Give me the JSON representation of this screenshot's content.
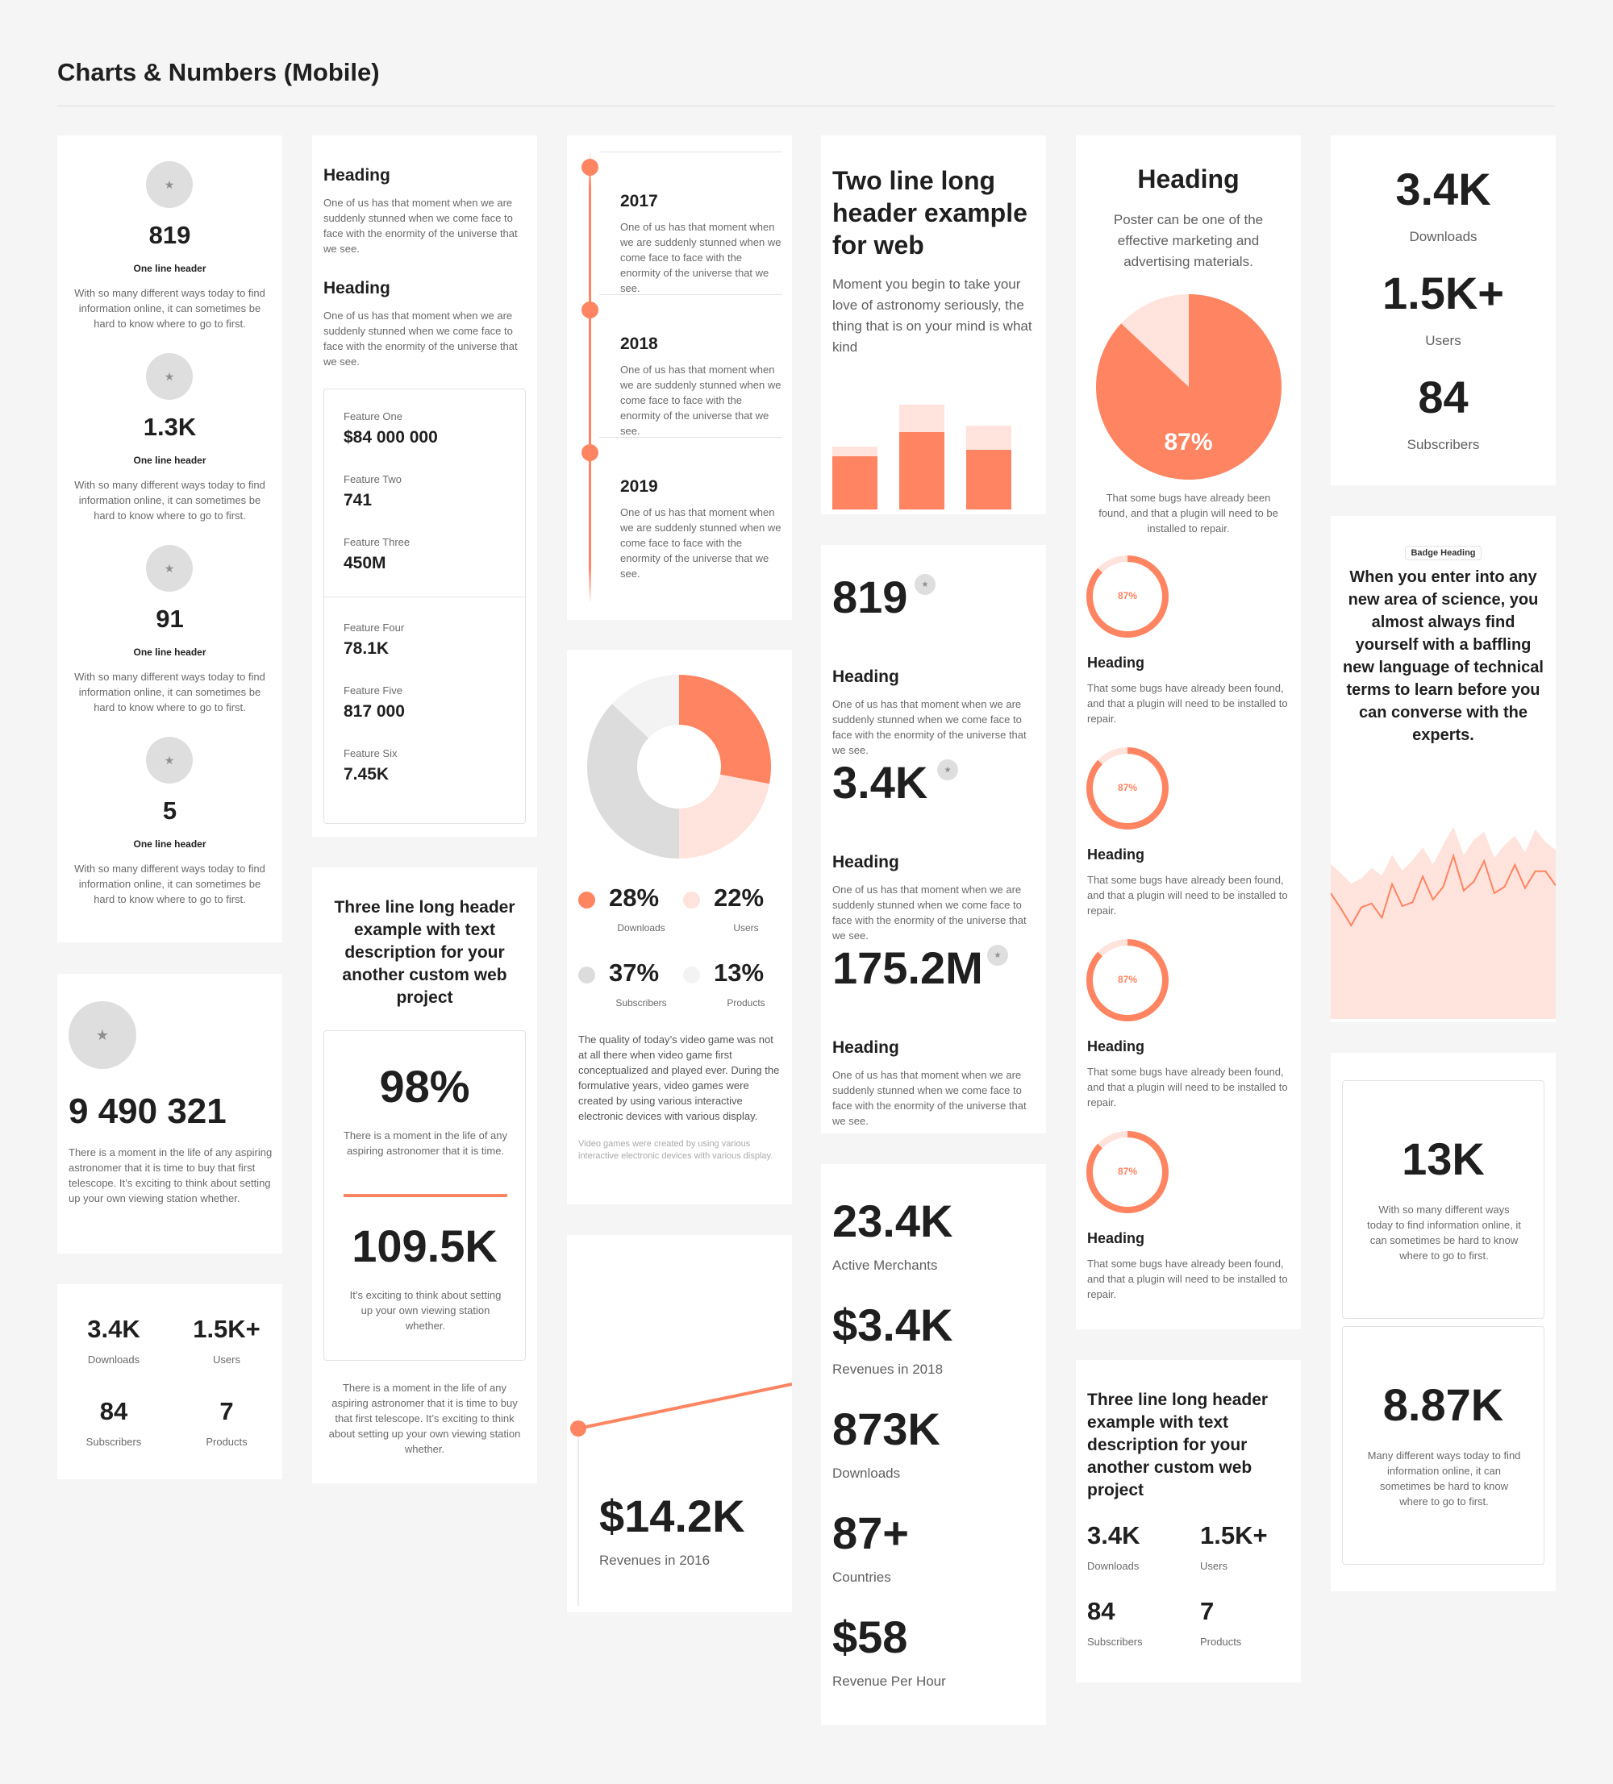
{
  "page": {
    "title": "Charts & Numbers (Mobile)"
  },
  "colors": {
    "accent": "#ff8461",
    "accent_light": "#ffe3dc",
    "neutral": "#dcdcdc",
    "neutral_light": "#f3f3f3",
    "text": "#1f1f1f"
  },
  "icons": {
    "star": "star-icon"
  },
  "col1": {
    "stats": [
      {
        "value": "819",
        "header": "One line header",
        "text": "With so many different ways today to find information online, it can sometimes be hard to know where to go to first."
      },
      {
        "value": "1.3K",
        "header": "One line header",
        "text": "With so many different ways today to find information online, it can sometimes be hard to know where to go to first."
      },
      {
        "value": "91",
        "header": "One line header",
        "text": "With so many different ways today to find information online, it can sometimes be hard to know where to go to first."
      },
      {
        "value": "5",
        "header": "One line header",
        "text": "With so many different ways today to find information online, it can sometimes be hard to know where to go to first."
      }
    ],
    "big_number": {
      "value": "9 490 321",
      "text": "There is a moment in the life of any aspiring astronomer that it is time to buy that first telescope. It’s exciting to think about setting up your own viewing station whether."
    },
    "grid": [
      {
        "value": "3.4K",
        "label": "Downloads"
      },
      {
        "value": "1.5K+",
        "label": "Users"
      },
      {
        "value": "84",
        "label": "Subscribers"
      },
      {
        "value": "7",
        "label": "Products"
      }
    ]
  },
  "col2": {
    "headings": [
      {
        "title": "Heading",
        "text": "One of us has that moment when we are suddenly stunned when we come face to face with the enormity of the universe that we see."
      },
      {
        "title": "Heading",
        "text": "One of us has that moment when we are suddenly stunned when we come face to face with the enormity of the universe that we see."
      }
    ],
    "features_a": [
      {
        "label": "Feature One",
        "value": "$84 000 000"
      },
      {
        "label": "Feature Two",
        "value": "741"
      },
      {
        "label": "Feature Three",
        "value": "450M"
      }
    ],
    "features_b": [
      {
        "label": "Feature Four",
        "value": "78.1K"
      },
      {
        "label": "Feature Five",
        "value": "817 000"
      },
      {
        "label": "Feature Six",
        "value": "7.45K"
      }
    ],
    "three_line": {
      "title": "Three line long header example with text description for your another custom web project",
      "stat1": {
        "value": "98%",
        "text": "There is a moment in the life of any aspiring astronomer that it is time."
      },
      "stat2": {
        "value": "109.5K",
        "text": "It’s exciting to think about setting up your own viewing station whether."
      },
      "footer": "There is a moment in the life of any aspiring astronomer that it is time to buy that first telescope. It’s exciting to think about setting up your own viewing station whether."
    }
  },
  "col3": {
    "timeline": [
      {
        "year": "2017",
        "text": "One of us has that moment when we are suddenly stunned when we come face to face with the enormity of the universe that we see."
      },
      {
        "year": "2018",
        "text": "One of us has that moment when we are suddenly stunned when we come face to face with the enormity of the universe that we see."
      },
      {
        "year": "2019",
        "text": "One of us has that moment when we are suddenly stunned when we come face to face with the enormity of the universe that we see."
      }
    ],
    "donut_legend": [
      {
        "value": "28%",
        "label": "Downloads"
      },
      {
        "value": "22%",
        "label": "Users"
      },
      {
        "value": "37%",
        "label": "Subscribers"
      },
      {
        "value": "13%",
        "label": "Products"
      }
    ],
    "donut_text": "The quality of today’s video game was not at all there when video game first conceptualized and played ever. During the formulative years, video games were created by using various interactive electronic devices with various display.",
    "donut_note": "Video games were created by using various interactive electronic devices with various display.",
    "revenue": {
      "value": "$14.2K",
      "label": "Revenues in 2016"
    }
  },
  "col4": {
    "two_line": {
      "title": "Two line long header example for web",
      "text": "Moment you begin to take your love of astronomy seriously, the thing that is on your mind is what kind"
    },
    "stats": [
      {
        "value": "819",
        "heading": "Heading",
        "text": "One of us has that moment when we are suddenly stunned when we come face to face with the enormity of the universe that we see."
      },
      {
        "value": "3.4K",
        "heading": "Heading",
        "text": "One of us has that moment when we are suddenly stunned when we come face to face with the enormity of the universe that we see."
      },
      {
        "value": "175.2M",
        "heading": "Heading",
        "text": "One of us has that moment when we are suddenly stunned when we come face to face with the enormity of the universe that we see."
      }
    ],
    "metrics": [
      {
        "value": "23.4K",
        "label": "Active Merchants"
      },
      {
        "value": "$3.4K",
        "label": "Revenues in 2018"
      },
      {
        "value": "873K",
        "label": "Downloads"
      },
      {
        "value": "87+",
        "label": "Countries"
      },
      {
        "value": "$58",
        "label": "Revenue Per Hour"
      }
    ]
  },
  "col5": {
    "pie_card": {
      "title": "Heading",
      "subtitle": "Poster can be one of the effective marketing and advertising materials.",
      "pie_label": "87%",
      "text": "That some bugs have already been found, and that a plugin will need to be installed to repair."
    },
    "rings": [
      {
        "label": "87%",
        "heading": "Heading",
        "text": "That some bugs have already been found, and that a plugin will need to be installed to repair."
      },
      {
        "label": "87%",
        "heading": "Heading",
        "text": "That some bugs have already been found, and that a plugin will need to be installed to repair."
      },
      {
        "label": "87%",
        "heading": "Heading",
        "text": "That some bugs have already been found, and that a plugin will need to be installed to repair."
      },
      {
        "label": "87%",
        "heading": "Heading",
        "text": "That some bugs have already been found, and that a plugin will need to be installed to repair."
      }
    ],
    "three_line": {
      "title": "Three line long header example with text description for your another custom web project",
      "grid": [
        {
          "value": "3.4K",
          "label": "Downloads"
        },
        {
          "value": "1.5K+",
          "label": "Users"
        },
        {
          "value": "84",
          "label": "Subscribers"
        },
        {
          "value": "7",
          "label": "Products"
        }
      ]
    }
  },
  "col6": {
    "stack": [
      {
        "value": "3.4K",
        "label": "Downloads"
      },
      {
        "value": "1.5K+",
        "label": "Users"
      },
      {
        "value": "84",
        "label": "Subscribers"
      }
    ],
    "badge": {
      "label": "Badge Heading",
      "text": "When you enter into any new area of science, you almost always find yourself with a baffling new language of technical terms to learn before you can converse with the experts."
    },
    "boxes": [
      {
        "value": "13K",
        "text": "With so many different ways today to find information online, it can sometimes be hard to know where to go to first."
      },
      {
        "value": "8.87K",
        "text": "Many different ways today to find information online, it can sometimes be hard to know where to go to first."
      }
    ]
  },
  "chart_data": [
    {
      "type": "bar",
      "categories": [
        "",
        "",
        ""
      ],
      "series": [
        {
          "values": [
            42,
            66,
            50
          ]
        },
        {
          "values": [
            78,
            130,
            104
          ]
        }
      ]
    },
    {
      "type": "pie",
      "slices": [
        {
          "value": 87
        },
        {
          "value": 13
        }
      ],
      "center_label": "87%"
    },
    {
      "type": "pie",
      "variant": "donut",
      "slices": [
        {
          "value": 28,
          "label": "Downloads"
        },
        {
          "value": 22,
          "label": "Users"
        },
        {
          "value": 37,
          "label": "Subscribers"
        },
        {
          "value": 13,
          "label": "Products"
        }
      ]
    },
    {
      "type": "line",
      "y": [
        1,
        10
      ]
    },
    {
      "type": "area",
      "y": [
        55,
        62,
        70,
        66,
        58,
        64,
        48,
        60,
        52,
        42,
        55,
        40,
        26,
        48,
        36,
        30,
        50,
        40,
        33,
        46,
        28,
        38,
        44
      ]
    },
    {
      "type": "ring",
      "values": [
        87,
        87,
        87,
        87
      ]
    }
  ]
}
